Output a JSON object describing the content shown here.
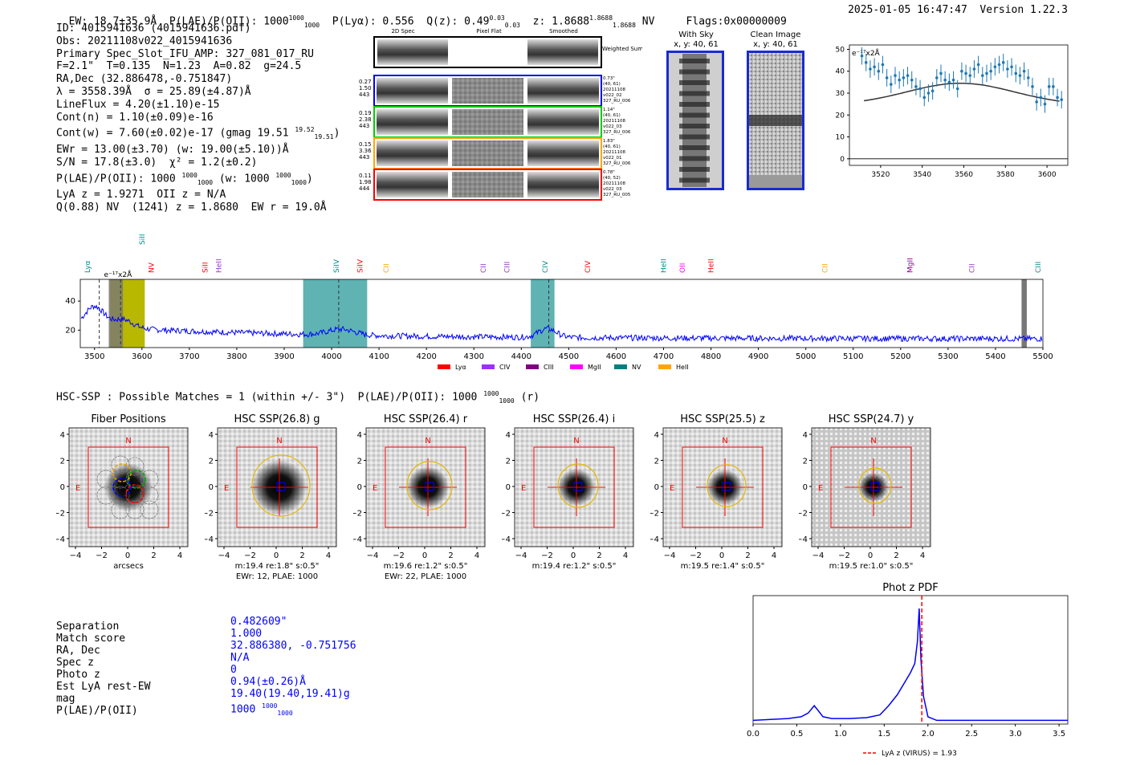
{
  "header": {
    "line": "EW: 18.7±35.9Å  P(LAE)/P(OII): 1000",
    "plae_frac_top": "1000",
    "plae_frac_bot": "1000",
    "plya": "P(Lyα): 0.556",
    "qz": "Q(z): 0.49",
    "qz_top": "0.03",
    "qz_bot": "0.03",
    "z": "z: 1.8688",
    "z_top": "1.8688",
    "z_bot": "1.8688",
    "nv": "NV",
    "flags": "Flags:0x00000009",
    "timestamp": "2025-01-05 16:47:47  Version 1.22.3"
  },
  "info": {
    "id": "ID: 4015941636 (4015941636.pdf)",
    "obs": "Obs: 20211108v022_4015941636",
    "slot": "Primary Spec_Slot_IFU_AMP: 327_081_017_RU",
    "fwhm": "F=2.1\"  T=0.135  N=1.23  A=0.82  g=24.5",
    "radec": "RA,Dec (32.886478,-0.751847)",
    "lambda": "λ = 3558.39Å  σ = 25.89(±4.87)Å",
    "lineflux": "LineFlux = 4.20(±1.10)e-15",
    "contn": "Cont(n) = 1.10(±0.09)e-16",
    "contw": "Cont(w) = 7.60(±0.02)e-17 (gmag 19.51",
    "gmag_top": "19.52",
    "gmag_bot": "19.51",
    "ewr": "EWr = 13.00(±3.70) (w: 19.00(±5.10))Å",
    "sn": "S/N = 17.8(±3.0)  χ² = 1.2(±0.2)",
    "plae": "P(LAE)/P(OII): 1000",
    "plae_w": "(w: 1000",
    "lya": "LyA z = 1.9271  OII z = N/A",
    "q": "Q(0.88) NV  (1241) z = 1.8680  EW r = 19.0Å"
  },
  "cutouts": {
    "headers": [
      "2D Spec",
      "Pixel Flat",
      "Smoothed"
    ],
    "weighted": "Weighted Sum",
    "rows": [
      {
        "left": [
          "0.27",
          "1.50",
          "443"
        ],
        "right": [
          "0.73\"",
          "(40, 61)",
          "20211108",
          "v022_02",
          "327_RU_006"
        ],
        "color": "#0000ff"
      },
      {
        "left": [
          "0.19",
          "2.38",
          "443"
        ],
        "right": [
          "1.14\"",
          "(40, 61)",
          "20211108",
          "v022_03",
          "327_RU_006"
        ],
        "color": "#00cc00"
      },
      {
        "left": [
          "0.15",
          "3.36",
          "443"
        ],
        "right": [
          "1.83\"",
          "(40, 61)",
          "20211108",
          "v022_01",
          "327_RU_006"
        ],
        "color": "#ffa500"
      },
      {
        "left": [
          "0.11",
          "1.98",
          "444"
        ],
        "right": [
          "0.78\"",
          "(40, 52)",
          "20211108",
          "v022_03",
          "327_RU_005"
        ],
        "color": "#ff0000"
      }
    ],
    "with_sky": "With Sky",
    "with_sky_xy": "x, y: 40, 61",
    "clean": "Clean Image",
    "clean_xy": "x, y: 40, 61"
  },
  "zoom_chart": {
    "type": "scatter",
    "label": "e⁻¹⁷x2Å",
    "xlim": [
      3505,
      3610
    ],
    "ylim": [
      -3,
      52
    ],
    "xticks": [
      3520,
      3540,
      3560,
      3580,
      3600
    ],
    "yticks": [
      0,
      10,
      20,
      30,
      40,
      50
    ],
    "points": [
      [
        3511,
        47
      ],
      [
        3513,
        44
      ],
      [
        3515,
        41
      ],
      [
        3517,
        42
      ],
      [
        3519,
        40
      ],
      [
        3521,
        43
      ],
      [
        3523,
        37
      ],
      [
        3525,
        34
      ],
      [
        3527,
        38
      ],
      [
        3529,
        36
      ],
      [
        3531,
        37
      ],
      [
        3533,
        38
      ],
      [
        3535,
        36
      ],
      [
        3537,
        33
      ],
      [
        3539,
        32
      ],
      [
        3541,
        28
      ],
      [
        3543,
        30
      ],
      [
        3545,
        31
      ],
      [
        3547,
        37
      ],
      [
        3549,
        39
      ],
      [
        3551,
        36
      ],
      [
        3553,
        35
      ],
      [
        3555,
        36
      ],
      [
        3557,
        32
      ],
      [
        3559,
        40
      ],
      [
        3561,
        39
      ],
      [
        3563,
        38
      ],
      [
        3565,
        41
      ],
      [
        3567,
        43
      ],
      [
        3569,
        38
      ],
      [
        3571,
        39
      ],
      [
        3573,
        40
      ],
      [
        3575,
        42
      ],
      [
        3577,
        43
      ],
      [
        3579,
        44
      ],
      [
        3581,
        41
      ],
      [
        3583,
        42
      ],
      [
        3585,
        39
      ],
      [
        3587,
        38
      ],
      [
        3589,
        40
      ],
      [
        3591,
        37
      ],
      [
        3593,
        33
      ],
      [
        3595,
        26
      ],
      [
        3597,
        28
      ],
      [
        3599,
        25
      ],
      [
        3601,
        33
      ],
      [
        3603,
        33
      ],
      [
        3605,
        28
      ],
      [
        3607,
        27
      ]
    ],
    "gaussian": {
      "amp": 10,
      "mu": 3558.39,
      "sigma": 25.89,
      "base": 24.5
    }
  },
  "spectrum": {
    "type": "line",
    "label": "e⁻¹⁷x2Å",
    "xlim": [
      3470,
      5500
    ],
    "ylim": [
      8,
      55
    ],
    "xticks": [
      3500,
      3600,
      3700,
      3800,
      3900,
      4000,
      4100,
      4200,
      4300,
      4400,
      4500,
      4600,
      4700,
      4800,
      4900,
      5000,
      5100,
      5200,
      5300,
      5400,
      5500
    ],
    "yticks": [
      20,
      40
    ],
    "lines": [
      {
        "name": "Lyα",
        "x": 3485,
        "color": "#008b8b"
      },
      {
        "name": "NV",
        "x": 3620,
        "color": "#ff0000"
      },
      {
        "name": "SiII",
        "x": 3733,
        "color": "#ff0000"
      },
      {
        "name": "HeII",
        "x": 3762,
        "color": "#9932cc"
      },
      {
        "name": "SiII",
        "x": 3600,
        "color": "#008b8b"
      },
      {
        "name": "SiIV",
        "x": 4010,
        "color": "#008b8b"
      },
      {
        "name": "SiIV",
        "x": 4060,
        "color": "#ff0000"
      },
      {
        "name": "CII",
        "x": 4115,
        "color": "#ffa500"
      },
      {
        "name": "CII",
        "x": 4320,
        "color": "#9932cc"
      },
      {
        "name": "CIII",
        "x": 4370,
        "color": "#9932cc"
      },
      {
        "name": "CIV",
        "x": 4450,
        "color": "#008b8b"
      },
      {
        "name": "CIV",
        "x": 4540,
        "color": "#ff0000"
      },
      {
        "name": "HeII",
        "x": 4700,
        "color": "#008b8b"
      },
      {
        "name": "OII",
        "x": 4740,
        "color": "#ff00ff"
      },
      {
        "name": "HeII",
        "x": 4800,
        "color": "#ff0000"
      },
      {
        "name": "CII",
        "x": 5040,
        "color": "#ffa500"
      },
      {
        "name": "MgII",
        "x": 5220,
        "color": "#8b008b"
      },
      {
        "name": "CII",
        "x": 5350,
        "color": "#9932cc"
      },
      {
        "name": "CIII",
        "x": 5490,
        "color": "#008b8b"
      }
    ],
    "bands": [
      {
        "x0": 3532,
        "x1": 3606,
        "color": "#b8b800"
      },
      {
        "x0": 3940,
        "x1": 4075,
        "color": "#5fb3b3"
      },
      {
        "x0": 4420,
        "x1": 4470,
        "color": "#5fb3b3"
      }
    ],
    "legend": [
      {
        "name": "Lyα",
        "color": "#ff0000"
      },
      {
        "name": "CIV",
        "color": "#9b30ff"
      },
      {
        "name": "CIII",
        "color": "#800080"
      },
      {
        "name": "MgII",
        "color": "#ff00ff"
      },
      {
        "name": "NV",
        "color": "#008080"
      },
      {
        "name": "HeII",
        "color": "#ffa500"
      }
    ]
  },
  "hsc_title": "HSC-SSP : Possible Matches = 1 (within +/- 3\")  P(LAE)/P(OII): 1000",
  "hsc_frac_top": "1000",
  "hsc_frac_bot": "1000",
  "hsc_tail": "(r)",
  "panels": [
    {
      "title": "Fiber Positions",
      "cap1": "arcsecs",
      "cap2": ""
    },
    {
      "title": "HSC SSP(26.8) g",
      "cap1": "m:19.4  re:1.8\"  s:0.5\"",
      "cap2": "EWr: 12, PLAE: 1000"
    },
    {
      "title": "HSC SSP(26.4) r",
      "cap1": "m:19.6  re:1.2\"  s:0.5\"",
      "cap2": "EWr: 22, PLAE: 1000"
    },
    {
      "title": "HSC SSP(26.4) i",
      "cap1": "m:19.4  re:1.2\"  s:0.5\"",
      "cap2": ""
    },
    {
      "title": "HSC SSP(25.5) z",
      "cap1": "m:19.5  re:1.4\"  s:0.5\"",
      "cap2": ""
    },
    {
      "title": "HSC SSP(24.7) y",
      "cap1": "m:19.5  re:1.0\"  s:0.5\"",
      "cap2": ""
    }
  ],
  "panel_ticks": [
    "4",
    "2",
    "0",
    "−2",
    "−4"
  ],
  "panel_xticks": [
    "−4",
    "−2",
    "0",
    "2",
    "4"
  ],
  "compass": {
    "n": "N",
    "e": "E"
  },
  "match": {
    "labels": [
      "Separation",
      "Match score",
      "RA, Dec",
      "Spec z",
      "Photo z",
      "Est LyA rest-EW",
      "mag",
      "P(LAE)/P(OII)"
    ],
    "values": [
      "0.482609\"",
      "1.000",
      "32.886380, -0.751756",
      "N/A",
      "0",
      "0.94(±0.26)Å",
      "19.40(19.40,19.41)g",
      "1000"
    ],
    "plae_top": "1000",
    "plae_bot": "1000"
  },
  "photz": {
    "type": "line",
    "title": "Phot z PDF",
    "xlim": [
      0,
      3.6
    ],
    "xticks": [
      "0.0",
      "0.5",
      "1.0",
      "1.5",
      "2.0",
      "2.5",
      "3.0",
      "3.5"
    ],
    "marker": 1.93,
    "legend": "LyA z (VIRUS) = 1.93",
    "pdf": [
      [
        0,
        0.02
      ],
      [
        0.2,
        0.025
      ],
      [
        0.4,
        0.03
      ],
      [
        0.55,
        0.04
      ],
      [
        0.63,
        0.06
      ],
      [
        0.7,
        0.1
      ],
      [
        0.75,
        0.07
      ],
      [
        0.8,
        0.04
      ],
      [
        0.9,
        0.03
      ],
      [
        1.1,
        0.03
      ],
      [
        1.3,
        0.035
      ],
      [
        1.45,
        0.05
      ],
      [
        1.55,
        0.1
      ],
      [
        1.65,
        0.16
      ],
      [
        1.75,
        0.24
      ],
      [
        1.8,
        0.28
      ],
      [
        1.85,
        0.33
      ],
      [
        1.88,
        0.45
      ],
      [
        1.9,
        0.63
      ],
      [
        1.92,
        0.35
      ],
      [
        1.95,
        0.15
      ],
      [
        2.0,
        0.04
      ],
      [
        2.1,
        0.02
      ],
      [
        2.5,
        0.02
      ],
      [
        3.0,
        0.02
      ],
      [
        3.6,
        0.02
      ]
    ]
  },
  "colors": {
    "spectrum": "#0000ff",
    "zoom": "#1f77b4",
    "model": "#333333",
    "red": "#ff0000"
  }
}
